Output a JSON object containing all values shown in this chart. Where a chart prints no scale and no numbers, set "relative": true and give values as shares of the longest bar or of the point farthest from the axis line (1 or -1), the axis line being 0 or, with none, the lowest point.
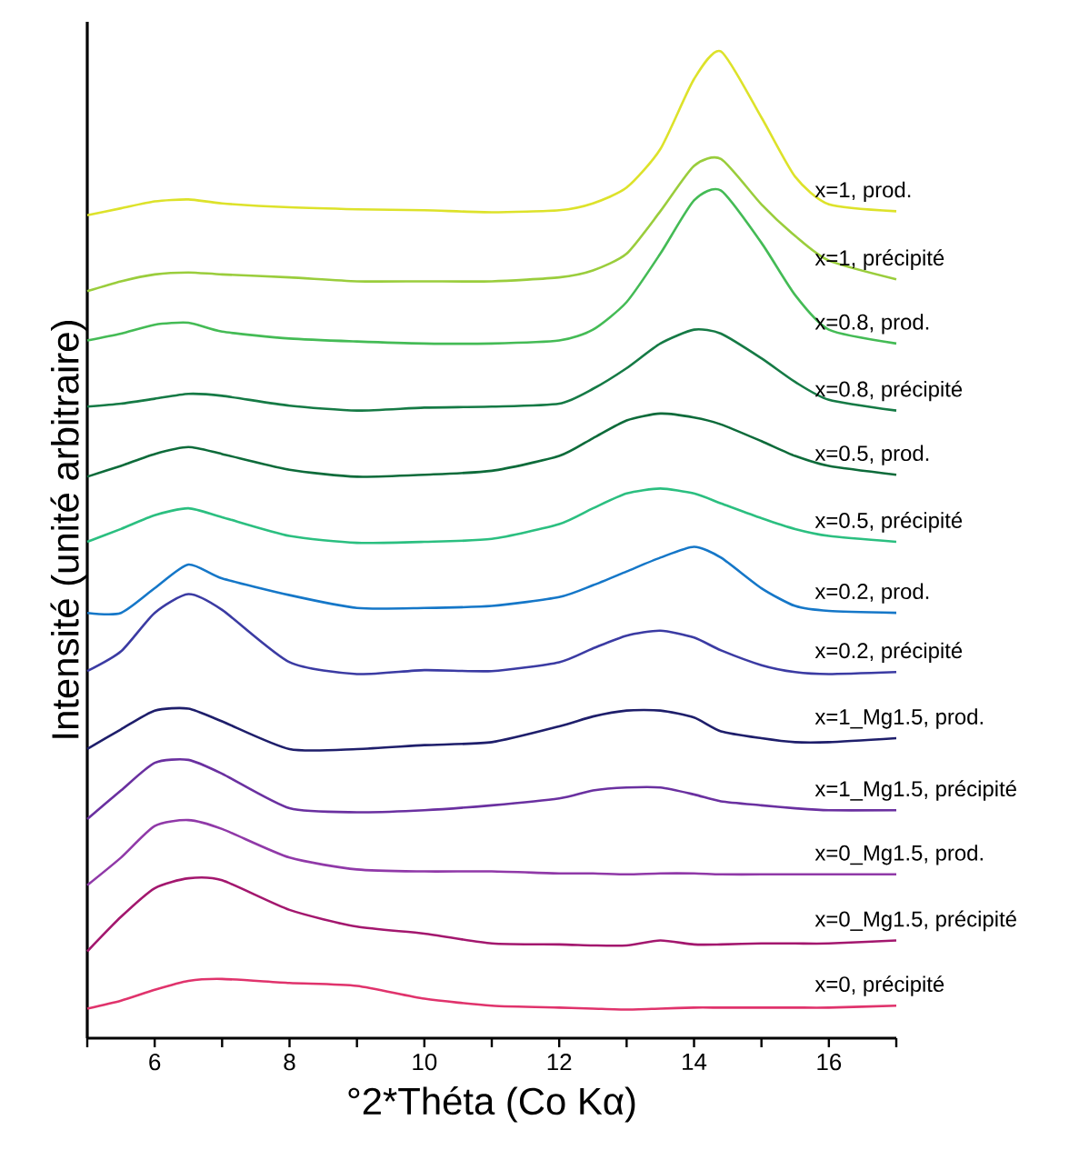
{
  "chart_data": {
    "type": "line",
    "relative": true,
    "xlabel": "°2*Théta (Co Kα)",
    "ylabel": "Intensité (unité arbitraire)",
    "xlim": [
      5,
      17
    ],
    "xticks": [
      {
        "value": 5,
        "label": null
      },
      6,
      {
        "value": 7,
        "label": null
      },
      8,
      {
        "value": 9,
        "label": null
      },
      10,
      {
        "value": 11,
        "label": null
      },
      12,
      {
        "value": 13,
        "label": null
      },
      14,
      {
        "value": 15,
        "label": null
      },
      16,
      {
        "value": 17,
        "label": null
      }
    ],
    "x": [
      5,
      5.5,
      6,
      6.5,
      7,
      8,
      9,
      10,
      11,
      12,
      12.5,
      13,
      13.5,
      14,
      14.4,
      15,
      15.5,
      16,
      17
    ],
    "series": [
      {
        "name": "x=1, prod.",
        "color": "#dde22a",
        "values": [
          0.834,
          0.841,
          0.848,
          0.85,
          0.846,
          0.842,
          0.84,
          0.839,
          0.837,
          0.839,
          0.846,
          0.862,
          0.901,
          0.972,
          1.0,
          0.933,
          0.873,
          0.845,
          0.838
        ]
      },
      {
        "name": "x=1, précipité",
        "color": "#9acd3c",
        "values": [
          0.757,
          0.767,
          0.774,
          0.776,
          0.774,
          0.771,
          0.767,
          0.767,
          0.767,
          0.771,
          0.778,
          0.795,
          0.838,
          0.884,
          0.891,
          0.845,
          0.813,
          0.788,
          0.769
        ]
      },
      {
        "name": "x=0.8, prod.",
        "color": "#44bb55",
        "values": [
          0.707,
          0.714,
          0.723,
          0.725,
          0.716,
          0.709,
          0.706,
          0.704,
          0.704,
          0.707,
          0.718,
          0.746,
          0.795,
          0.849,
          0.859,
          0.806,
          0.753,
          0.718,
          0.704
        ]
      },
      {
        "name": "x=0.8, précipité",
        "color": "#157a45",
        "values": [
          0.64,
          0.643,
          0.648,
          0.653,
          0.651,
          0.641,
          0.636,
          0.639,
          0.64,
          0.643,
          0.658,
          0.679,
          0.704,
          0.718,
          0.714,
          0.689,
          0.665,
          0.647,
          0.636
        ]
      },
      {
        "name": "x=0.5, prod.",
        "color": "#0d6b3a",
        "values": [
          0.569,
          0.58,
          0.592,
          0.599,
          0.592,
          0.576,
          0.569,
          0.571,
          0.575,
          0.59,
          0.608,
          0.626,
          0.633,
          0.629,
          0.622,
          0.605,
          0.59,
          0.58,
          0.571
        ]
      },
      {
        "name": "x=0.5, précipité",
        "color": "#2bbf80",
        "values": [
          0.503,
          0.516,
          0.53,
          0.537,
          0.528,
          0.509,
          0.502,
          0.503,
          0.506,
          0.521,
          0.537,
          0.552,
          0.557,
          0.552,
          0.542,
          0.527,
          0.516,
          0.509,
          0.503
        ]
      },
      {
        "name": "x=0.2, prod.",
        "color": "#1577c8",
        "values": [
          0.431,
          0.431,
          0.456,
          0.48,
          0.466,
          0.449,
          0.436,
          0.436,
          0.438,
          0.447,
          0.459,
          0.473,
          0.487,
          0.498,
          0.487,
          0.456,
          0.438,
          0.433,
          0.431
        ]
      },
      {
        "name": "x=0.2, précipité",
        "color": "#3b3ba3",
        "values": [
          0.372,
          0.392,
          0.431,
          0.45,
          0.434,
          0.381,
          0.369,
          0.373,
          0.372,
          0.381,
          0.395,
          0.408,
          0.413,
          0.406,
          0.393,
          0.378,
          0.371,
          0.369,
          0.371
        ]
      },
      {
        "name": "x=1_Mg1.5, prod.",
        "color": "#1e1e6b",
        "values": [
          0.293,
          0.313,
          0.332,
          0.334,
          0.321,
          0.293,
          0.293,
          0.297,
          0.3,
          0.316,
          0.326,
          0.332,
          0.332,
          0.325,
          0.311,
          0.304,
          0.3,
          0.3,
          0.304
        ]
      },
      {
        "name": "x=1_Mg1.5, précipité",
        "color": "#6a30a0",
        "values": [
          0.222,
          0.251,
          0.279,
          0.282,
          0.268,
          0.233,
          0.229,
          0.231,
          0.236,
          0.243,
          0.251,
          0.254,
          0.254,
          0.247,
          0.24,
          0.236,
          0.233,
          0.231,
          0.231
        ]
      },
      {
        "name": "x=0_Mg1.5, prod.",
        "color": "#9039a8",
        "values": [
          0.155,
          0.183,
          0.215,
          0.221,
          0.212,
          0.183,
          0.171,
          0.169,
          0.169,
          0.167,
          0.167,
          0.166,
          0.167,
          0.167,
          0.166,
          0.166,
          0.166,
          0.166,
          0.166
        ]
      },
      {
        "name": "x=0_Mg1.5, précipité",
        "color": "#a3176e",
        "values": [
          0.088,
          0.123,
          0.152,
          0.162,
          0.16,
          0.13,
          0.113,
          0.106,
          0.096,
          0.095,
          0.094,
          0.094,
          0.099,
          0.095,
          0.095,
          0.096,
          0.096,
          0.096,
          0.099
        ]
      },
      {
        "name": "x=0, précipité",
        "color": "#e0336c",
        "values": [
          0.03,
          0.038,
          0.049,
          0.058,
          0.06,
          0.056,
          0.053,
          0.04,
          0.033,
          0.031,
          0.03,
          0.029,
          0.03,
          0.031,
          0.031,
          0.031,
          0.031,
          0.031,
          0.033
        ]
      }
    ]
  }
}
